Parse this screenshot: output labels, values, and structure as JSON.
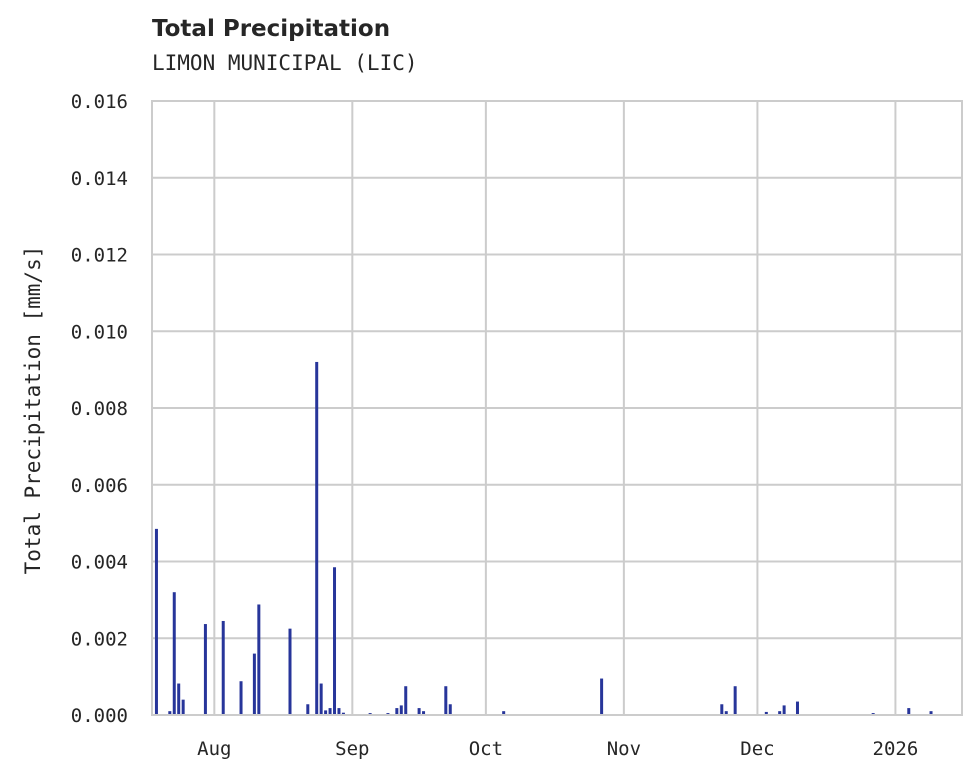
{
  "header": {
    "title": "Total Precipitation",
    "subtitle": "LIMON MUNICIPAL (LIC)"
  },
  "colors": {
    "bar": "#27359a",
    "grid": "#cccccc",
    "text": "#262626"
  },
  "chart_data": {
    "type": "bar",
    "title": "Total Precipitation",
    "subtitle": "LIMON MUNICIPAL (LIC)",
    "xlabel": "",
    "ylabel": "Total Precipitation [mm/s]",
    "ylim": [
      0,
      0.016
    ],
    "yticks": [
      "0.000",
      "0.002",
      "0.004",
      "0.006",
      "0.008",
      "0.010",
      "0.012",
      "0.014",
      "0.016"
    ],
    "xticks": [
      "Aug",
      "Sep",
      "Oct",
      "Nov",
      "Dec",
      "2026"
    ],
    "xrange": [
      "2025-07-18",
      "2026-01-09"
    ],
    "grid": true,
    "legend": null,
    "points": [
      {
        "date": "2025-07-19",
        "value": 0.00485
      },
      {
        "date": "2025-07-22",
        "value": 0.0001
      },
      {
        "date": "2025-07-23",
        "value": 0.0032
      },
      {
        "date": "2025-07-24",
        "value": 0.00082
      },
      {
        "date": "2025-07-25",
        "value": 0.0004
      },
      {
        "date": "2025-07-30",
        "value": 0.00237
      },
      {
        "date": "2025-08-03",
        "value": 0.00245
      },
      {
        "date": "2025-08-07",
        "value": 0.00088
      },
      {
        "date": "2025-08-10",
        "value": 0.0016
      },
      {
        "date": "2025-08-11",
        "value": 0.00288
      },
      {
        "date": "2025-08-18",
        "value": 0.00225
      },
      {
        "date": "2025-08-22",
        "value": 0.00028
      },
      {
        "date": "2025-08-24",
        "value": 0.0092
      },
      {
        "date": "2025-08-25",
        "value": 0.00082
      },
      {
        "date": "2025-08-26",
        "value": 0.00012
      },
      {
        "date": "2025-08-27",
        "value": 0.00018
      },
      {
        "date": "2025-08-28",
        "value": 0.00385
      },
      {
        "date": "2025-08-29",
        "value": 0.00018
      },
      {
        "date": "2025-08-30",
        "value": 6e-05
      },
      {
        "date": "2025-09-05",
        "value": 5e-05
      },
      {
        "date": "2025-09-09",
        "value": 5e-05
      },
      {
        "date": "2025-09-11",
        "value": 0.00018
      },
      {
        "date": "2025-09-12",
        "value": 0.00025
      },
      {
        "date": "2025-09-13",
        "value": 0.00075
      },
      {
        "date": "2025-09-16",
        "value": 0.00018
      },
      {
        "date": "2025-09-17",
        "value": 0.0001
      },
      {
        "date": "2025-09-22",
        "value": 0.00075
      },
      {
        "date": "2025-09-23",
        "value": 0.00028
      },
      {
        "date": "2025-10-05",
        "value": 0.0001
      },
      {
        "date": "2025-10-27",
        "value": 0.00095
      },
      {
        "date": "2025-11-23",
        "value": 0.00028
      },
      {
        "date": "2025-11-24",
        "value": 0.0001
      },
      {
        "date": "2025-11-26",
        "value": 0.00075
      },
      {
        "date": "2025-12-03",
        "value": 8e-05
      },
      {
        "date": "2025-12-06",
        "value": 0.0001
      },
      {
        "date": "2025-12-07",
        "value": 0.00025
      },
      {
        "date": "2025-12-10",
        "value": 0.00035
      },
      {
        "date": "2025-12-27",
        "value": 5e-05
      },
      {
        "date": "2026-01-04",
        "value": 0.00018
      },
      {
        "date": "2026-01-09",
        "value": 0.0001
      }
    ]
  }
}
